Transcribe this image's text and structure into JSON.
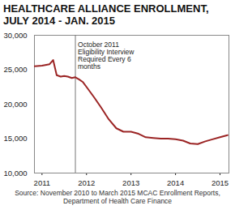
{
  "chart_data": {
    "type": "line",
    "title": "HEALTHCARE ALLIANCE ENROLLMENT, JULY 2014 - JAN. 2015",
    "caption": "Source: November 2010 to March 2015 MCAC Enrollment Reports, Department of Health Care Finance",
    "x": [
      2010.83,
      2011.0,
      2011.17,
      2011.25,
      2011.33,
      2011.42,
      2011.5,
      2011.58,
      2011.67,
      2011.75,
      2011.83,
      2011.92,
      2012.0,
      2012.17,
      2012.33,
      2012.5,
      2012.67,
      2012.83,
      2013.0,
      2013.17,
      2013.33,
      2013.5,
      2013.67,
      2013.83,
      2014.0,
      2014.17,
      2014.33,
      2014.5,
      2014.67,
      2014.83,
      2015.0,
      2015.17
    ],
    "values": [
      25500,
      25600,
      25800,
      26400,
      24200,
      24000,
      24100,
      24000,
      23800,
      23900,
      23600,
      23200,
      22500,
      21000,
      19500,
      17800,
      16500,
      16000,
      16000,
      15700,
      15200,
      15100,
      15000,
      15000,
      14900,
      14700,
      14300,
      14200,
      14600,
      14900,
      15200,
      15500
    ],
    "color": "#9b2424",
    "xlim": [
      2010.83,
      2015.2
    ],
    "xticks": [
      2011,
      2012,
      2013,
      2014,
      2015
    ],
    "ylim": [
      10000,
      30000
    ],
    "yticks": [
      {
        "value": 10000,
        "label": "10,000"
      },
      {
        "value": 15000,
        "label": "15,000"
      },
      {
        "value": 20000,
        "label": "20,000"
      },
      {
        "value": 25000,
        "label": "25,000"
      },
      {
        "value": 30000,
        "label": "30,000"
      }
    ],
    "grid": false,
    "annotation": {
      "x": 2011.75,
      "y": 29000,
      "text": "October 2011\nEligibility Interview\nRequired Every 6\nmonths"
    }
  }
}
